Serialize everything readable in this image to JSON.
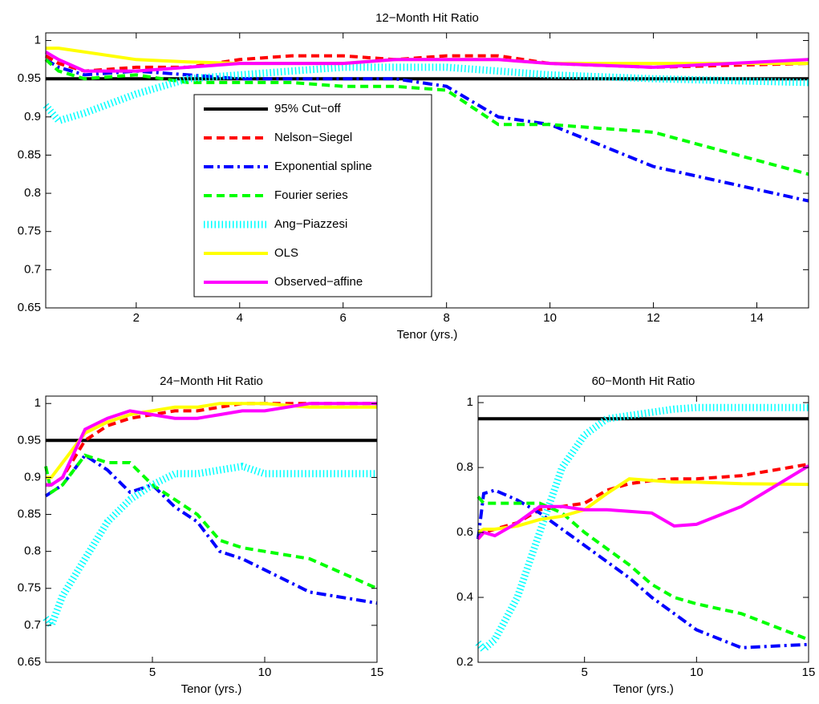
{
  "chart_data": [
    {
      "type": "line",
      "title": "12−Month Hit Ratio",
      "x_label": "Tenor (yrs.)",
      "x": [
        0.25,
        0.5,
        1,
        2,
        3,
        4,
        5,
        6,
        7,
        8,
        9,
        10,
        12,
        15
      ],
      "xlim": [
        0.25,
        15
      ],
      "ylim": [
        0.65,
        1.01
      ],
      "xticks": [
        2,
        4,
        6,
        8,
        10,
        12,
        14
      ],
      "yticks": [
        0.65,
        0.7,
        0.75,
        0.8,
        0.85,
        0.9,
        0.95,
        1
      ],
      "legend": true,
      "series": [
        {
          "name": "95% Cut−off",
          "color": "#000000",
          "style": "solid",
          "values": [
            0.95,
            0.95,
            0.95,
            0.95,
            0.95,
            0.95,
            0.95,
            0.95,
            0.95,
            0.95,
            0.95,
            0.95,
            0.95,
            0.95
          ]
        },
        {
          "name": "Nelson−Siegel",
          "color": "#ff0000",
          "style": "dashed",
          "values": [
            0.98,
            0.97,
            0.96,
            0.965,
            0.965,
            0.975,
            0.98,
            0.98,
            0.975,
            0.98,
            0.98,
            0.97,
            0.965,
            0.97
          ]
        },
        {
          "name": "Exponential spline",
          "color": "#0000ff",
          "style": "dashdot",
          "values": [
            0.975,
            0.965,
            0.955,
            0.96,
            0.955,
            0.95,
            0.95,
            0.95,
            0.95,
            0.94,
            0.9,
            0.89,
            0.835,
            0.79
          ]
        },
        {
          "name": "Fourier series",
          "color": "#00ff00",
          "style": "dashed",
          "values": [
            0.975,
            0.96,
            0.95,
            0.955,
            0.945,
            0.945,
            0.945,
            0.94,
            0.94,
            0.935,
            0.89,
            0.89,
            0.88,
            0.825
          ]
        },
        {
          "name": "Ang−Piazzesi",
          "color": "#00ffff",
          "style": "dotted",
          "values": [
            0.915,
            0.895,
            0.905,
            0.93,
            0.95,
            0.955,
            0.96,
            0.965,
            0.965,
            0.965,
            0.96,
            0.955,
            0.95,
            0.945
          ]
        },
        {
          "name": "OLS",
          "color": "#ffff00",
          "style": "solid",
          "values": [
            0.99,
            0.99,
            0.985,
            0.975,
            0.972,
            0.97,
            0.97,
            0.97,
            0.975,
            0.975,
            0.975,
            0.97,
            0.97,
            0.97
          ]
        },
        {
          "name": "Observed−affine",
          "color": "#ff00ff",
          "style": "solid",
          "values": [
            0.985,
            0.975,
            0.96,
            0.96,
            0.965,
            0.97,
            0.97,
            0.97,
            0.975,
            0.975,
            0.975,
            0.97,
            0.965,
            0.975
          ]
        }
      ]
    },
    {
      "type": "line",
      "title": "24−Month Hit Ratio",
      "x_label": "Tenor (yrs.)",
      "x": [
        0.25,
        0.5,
        1,
        2,
        3,
        4,
        5,
        6,
        7,
        8,
        9,
        10,
        12,
        15
      ],
      "xlim": [
        0.25,
        15
      ],
      "ylim": [
        0.65,
        1.01
      ],
      "xticks": [
        5,
        10,
        15
      ],
      "yticks": [
        0.65,
        0.7,
        0.75,
        0.8,
        0.85,
        0.9,
        0.95,
        1
      ],
      "series": [
        {
          "color": "#000000",
          "style": "solid",
          "values": [
            0.95,
            0.95,
            0.95,
            0.95,
            0.95,
            0.95,
            0.95,
            0.95,
            0.95,
            0.95,
            0.95,
            0.95,
            0.95,
            0.95
          ]
        },
        {
          "color": "#ff0000",
          "style": "dashed",
          "values": [
            0.89,
            0.89,
            0.9,
            0.95,
            0.97,
            0.98,
            0.985,
            0.99,
            0.99,
            0.995,
            1,
            1,
            1,
            1
          ]
        },
        {
          "color": "#0000ff",
          "style": "dashdot",
          "values": [
            0.875,
            0.88,
            0.89,
            0.93,
            0.91,
            0.88,
            0.89,
            0.86,
            0.84,
            0.8,
            0.79,
            0.775,
            0.745,
            0.73
          ]
        },
        {
          "color": "#00ff00",
          "style": "dashed",
          "values": [
            0.915,
            0.88,
            0.89,
            0.93,
            0.92,
            0.92,
            0.89,
            0.87,
            0.85,
            0.815,
            0.805,
            0.8,
            0.79,
            0.75
          ]
        },
        {
          "color": "#00ffff",
          "style": "dotted",
          "values": [
            0.71,
            0.7,
            0.74,
            0.79,
            0.84,
            0.87,
            0.89,
            0.905,
            0.905,
            0.91,
            0.915,
            0.905,
            0.905,
            0.905
          ]
        },
        {
          "color": "#ffff00",
          "style": "solid",
          "values": [
            0.9,
            0.9,
            0.92,
            0.96,
            0.975,
            0.985,
            0.99,
            0.995,
            0.995,
            1,
            1,
            1,
            0.995,
            0.995
          ]
        },
        {
          "color": "#ff00ff",
          "style": "solid",
          "values": [
            0.89,
            0.89,
            0.9,
            0.965,
            0.98,
            0.99,
            0.985,
            0.98,
            0.98,
            0.985,
            0.99,
            0.99,
            1,
            1
          ]
        }
      ]
    },
    {
      "type": "line",
      "title": "60−Month Hit Ratio",
      "x_label": "Tenor (yrs.)",
      "x": [
        0.25,
        0.5,
        1,
        2,
        3,
        4,
        5,
        6,
        7,
        8,
        9,
        10,
        12,
        15
      ],
      "xlim": [
        0.25,
        15
      ],
      "ylim": [
        0.2,
        1.02
      ],
      "xticks": [
        5,
        10,
        15
      ],
      "yticks": [
        0.2,
        0.4,
        0.6,
        0.8,
        1
      ],
      "series": [
        {
          "color": "#000000",
          "style": "solid",
          "values": [
            0.95,
            0.95,
            0.95,
            0.95,
            0.95,
            0.95,
            0.95,
            0.95,
            0.95,
            0.95,
            0.95,
            0.95,
            0.95,
            0.95
          ]
        },
        {
          "color": "#ff0000",
          "style": "dashed",
          "values": [
            0.58,
            0.6,
            0.61,
            0.63,
            0.67,
            0.68,
            0.69,
            0.73,
            0.75,
            0.76,
            0.765,
            0.765,
            0.775,
            0.81
          ]
        },
        {
          "color": "#0000ff",
          "style": "dashdot",
          "values": [
            0.58,
            0.72,
            0.73,
            0.7,
            0.66,
            0.61,
            0.56,
            0.51,
            0.46,
            0.4,
            0.35,
            0.3,
            0.245,
            0.255
          ]
        },
        {
          "color": "#00ff00",
          "style": "dashed",
          "values": [
            0.71,
            0.69,
            0.69,
            0.69,
            0.69,
            0.66,
            0.6,
            0.55,
            0.5,
            0.44,
            0.4,
            0.38,
            0.35,
            0.27
          ]
        },
        {
          "color": "#00ffff",
          "style": "dotted",
          "values": [
            0.26,
            0.24,
            0.27,
            0.4,
            0.6,
            0.8,
            0.9,
            0.95,
            0.96,
            0.97,
            0.98,
            0.985,
            0.985,
            0.985
          ]
        },
        {
          "color": "#ffff00",
          "style": "solid",
          "values": [
            0.6,
            0.61,
            0.61,
            0.62,
            0.64,
            0.65,
            0.67,
            0.72,
            0.765,
            0.76,
            0.755,
            0.755,
            0.75,
            0.748
          ]
        },
        {
          "color": "#ff00ff",
          "style": "solid",
          "values": [
            0.58,
            0.6,
            0.59,
            0.63,
            0.68,
            0.68,
            0.67,
            0.67,
            0.665,
            0.66,
            0.62,
            0.625,
            0.68,
            0.805
          ]
        }
      ]
    }
  ]
}
